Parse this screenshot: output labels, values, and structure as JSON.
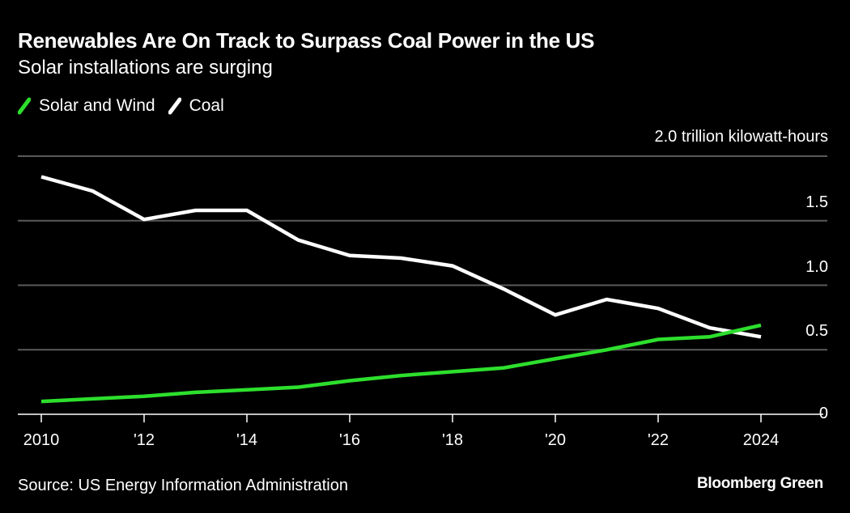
{
  "title": "Renewables Are On Track to Surpass Coal Power in the US",
  "subtitle": "Solar installations are surging",
  "legend": [
    {
      "label": "Solar and Wind",
      "color": "#2ddf2d",
      "icon": "slash-line-swatch"
    },
    {
      "label": "Coal",
      "color": "#ffffff",
      "icon": "slash-line-swatch"
    }
  ],
  "unit_label": "2.0 trillion kilowatt-hours",
  "source": "Source: US Energy Information Administration",
  "brand": "Bloomberg Green",
  "colors": {
    "background": "#000000",
    "grid": "#5a5a5a",
    "axis": "#ffffff",
    "solar_wind": "#2ddf2d",
    "coal": "#ffffff"
  },
  "chart_data": {
    "type": "line",
    "title": "Renewables Are On Track to Surpass Coal Power in the US",
    "subtitle": "Solar installations are surging",
    "xlabel": "",
    "ylabel": "trillion kilowatt-hours",
    "x": [
      2010,
      2011,
      2012,
      2013,
      2014,
      2015,
      2016,
      2017,
      2018,
      2019,
      2020,
      2021,
      2022,
      2023,
      2024
    ],
    "xlim": [
      2010,
      2024
    ],
    "ylim": [
      0,
      2.0
    ],
    "xticks": [
      {
        "value": 2010,
        "label": "2010"
      },
      {
        "value": 2012,
        "label": "'12"
      },
      {
        "value": 2014,
        "label": "'14"
      },
      {
        "value": 2016,
        "label": "'16"
      },
      {
        "value": 2018,
        "label": "'18"
      },
      {
        "value": 2020,
        "label": "'20"
      },
      {
        "value": 2022,
        "label": "'22"
      },
      {
        "value": 2024,
        "label": "2024"
      }
    ],
    "yticks": [
      {
        "value": 0,
        "label": "0"
      },
      {
        "value": 0.5,
        "label": "0.5"
      },
      {
        "value": 1.0,
        "label": "1.0"
      },
      {
        "value": 1.5,
        "label": "1.5"
      },
      {
        "value": 2.0,
        "label": "2.0 trillion kilowatt-hours"
      }
    ],
    "grid": true,
    "legend_position": "top-left",
    "series": [
      {
        "name": "Solar and Wind",
        "color": "#2ddf2d",
        "values": [
          0.1,
          0.12,
          0.14,
          0.17,
          0.19,
          0.21,
          0.26,
          0.3,
          0.33,
          0.36,
          0.43,
          0.5,
          0.58,
          0.6,
          0.69
        ]
      },
      {
        "name": "Coal",
        "color": "#ffffff",
        "values": [
          1.84,
          1.73,
          1.51,
          1.58,
          1.58,
          1.35,
          1.23,
          1.21,
          1.15,
          0.97,
          0.77,
          0.89,
          0.82,
          0.67,
          0.6
        ]
      }
    ],
    "source": "Source: US Energy Information Administration"
  }
}
